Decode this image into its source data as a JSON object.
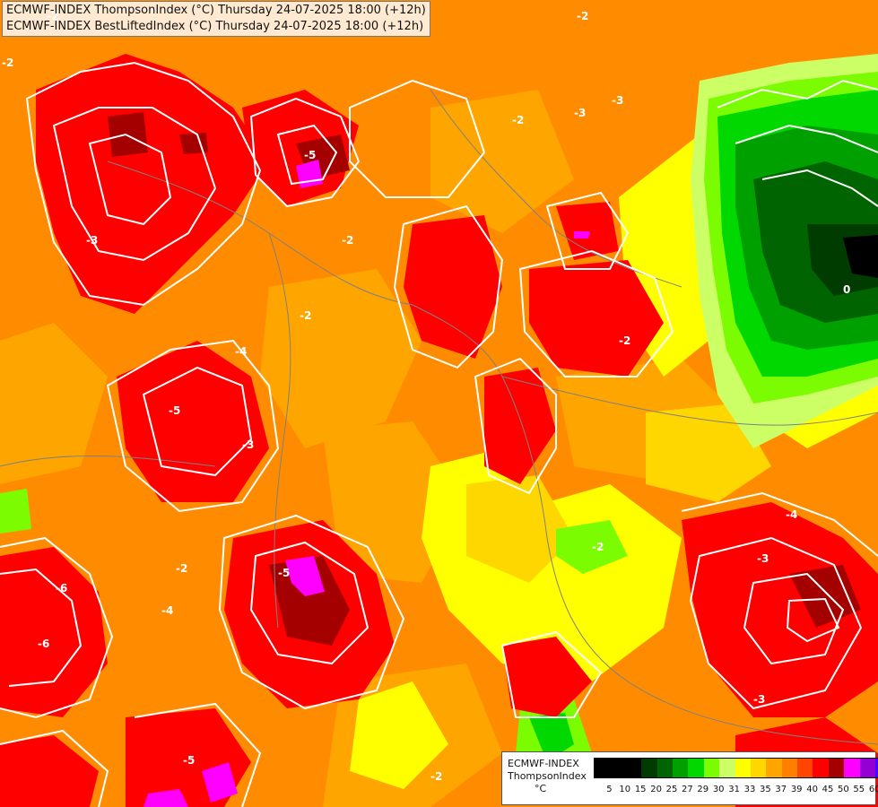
{
  "titles": {
    "line1": "ECMWF-INDEX ThompsonIndex (°C) Thursday 24-07-2025 18:00 (+12h)",
    "line2": "ECMWF-INDEX BestLiftedIndex (°C) Thursday 24-07-2025 18:00 (+12h)"
  },
  "legend": {
    "line1": "ECMWF-INDEX",
    "line2": "ThompsonIndex",
    "unit": "°C",
    "values": [
      "5",
      "10",
      "15",
      "20",
      "25",
      "27",
      "29",
      "30",
      "31",
      "33",
      "35",
      "37",
      "39",
      "40",
      "45",
      "50",
      "55",
      "60"
    ],
    "colors": [
      "#000000",
      "#000000",
      "#000000",
      "#003b00",
      "#006400",
      "#00a000",
      "#00d800",
      "#7cfc00",
      "#ccff66",
      "#ffff00",
      "#ffd700",
      "#ffa500",
      "#ff7f00",
      "#ff4500",
      "#ff0000",
      "#a50000",
      "#ff00ff",
      "#9400d3",
      "#4b00ff"
    ]
  },
  "contour_labels": [
    "-2",
    "-2",
    "-3",
    "-2",
    "-2",
    "-5",
    "-3",
    "-2",
    "-4",
    "-5",
    "-3",
    "-2",
    "-6",
    "-2",
    "-4",
    "-5",
    "-3",
    "-2",
    "-6",
    "-4",
    "-3",
    "-3",
    "-2",
    "-2",
    "0",
    "-5"
  ],
  "colors": {
    "background": "#ff8c00",
    "contour": "#ffffff",
    "border": "#808080"
  }
}
